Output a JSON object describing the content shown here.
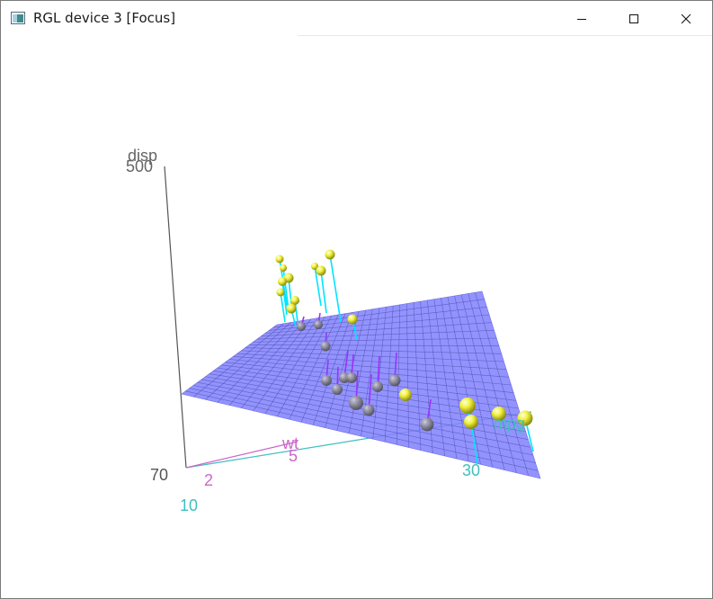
{
  "window": {
    "title": "RGL device 3 [Focus]",
    "app_icon": "rgl-window-icon",
    "buttons": {
      "minimize_icon": "minimize-icon",
      "maximize_icon": "maximize-icon",
      "close_icon": "close-icon"
    }
  },
  "chart_data": {
    "type": "scatter",
    "variables": [
      "mpg",
      "wt",
      "disp"
    ],
    "axes": {
      "z": {
        "label": "disp",
        "tick_labels": [
          "70",
          "500"
        ]
      },
      "x": {
        "label": "mpg",
        "tick_labels": [
          "10",
          "30"
        ]
      },
      "y": {
        "label": "wt",
        "tick_labels": [
          "2",
          "5"
        ]
      }
    },
    "regression_plane": {
      "color": "#8080ff",
      "grid": true
    },
    "point_colors": {
      "above_plane": "#e8e83a",
      "below_plane": "#8a8a8a"
    },
    "residual_colors": {
      "above_plane": "#00e5ff",
      "below_plane": "#9933ff"
    },
    "axis_colors": {
      "disp": "#333333",
      "mpg": "#3fbfbf",
      "wt": "#cc66cc"
    }
  }
}
